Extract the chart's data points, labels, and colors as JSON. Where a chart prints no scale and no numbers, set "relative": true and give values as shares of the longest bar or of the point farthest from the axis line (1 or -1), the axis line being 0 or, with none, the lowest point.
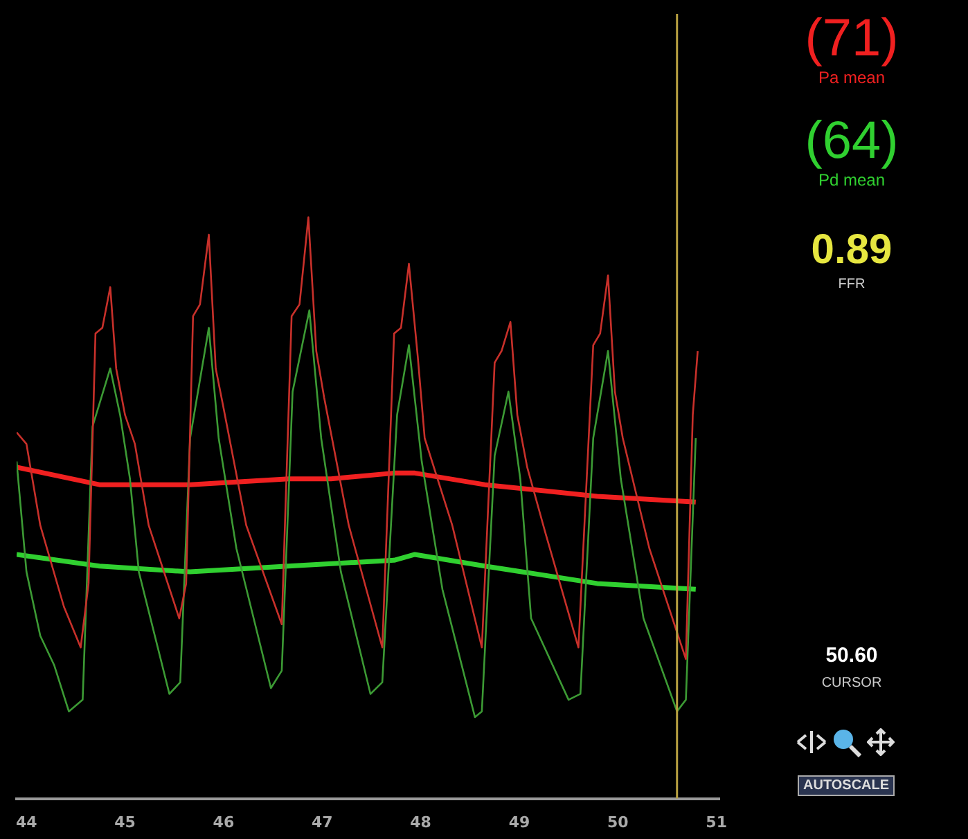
{
  "chart_data": {
    "type": "line",
    "relative": true,
    "xlim": [
      43.9,
      51.03
    ],
    "xticks": [
      44,
      45,
      46,
      47,
      48,
      49,
      50,
      51
    ],
    "marker": "none",
    "ref_lines": [
      {
        "axis": "x",
        "value": 50.6,
        "color": "#b8a040"
      }
    ],
    "annotations": [
      "(71)",
      "Pa mean",
      "(64)",
      "Pd mean",
      "0.89",
      "FFR",
      "50.60",
      "CURSOR",
      "AUTOSCALE"
    ],
    "series": [
      {
        "color": "#c8302a",
        "x": [
          43.9,
          44.0,
          44.14,
          44.38,
          44.55,
          44.63,
          44.7,
          44.77,
          44.85,
          44.91,
          45.0,
          45.1,
          45.24,
          45.55,
          45.62,
          45.69,
          45.76,
          45.85,
          45.92,
          45.99,
          46.23,
          46.59,
          46.69,
          46.77,
          46.86,
          46.94,
          47.02,
          47.27,
          47.61,
          47.73,
          47.8,
          47.88,
          47.97,
          48.04,
          48.32,
          48.62,
          48.75,
          48.82,
          48.91,
          48.98,
          49.08,
          49.26,
          49.6,
          49.75,
          49.82,
          49.9,
          49.97,
          50.05,
          50.32,
          50.69,
          50.76,
          50.81
        ],
        "values": [
          0.63,
          0.61,
          0.47,
          0.33,
          0.26,
          0.37,
          0.8,
          0.81,
          0.88,
          0.74,
          0.66,
          0.61,
          0.47,
          0.31,
          0.37,
          0.83,
          0.85,
          0.97,
          0.74,
          0.68,
          0.47,
          0.3,
          0.83,
          0.85,
          1,
          0.77,
          0.69,
          0.47,
          0.26,
          0.8,
          0.81,
          0.92,
          0.76,
          0.62,
          0.47,
          0.26,
          0.75,
          0.77,
          0.82,
          0.66,
          0.57,
          0.46,
          0.26,
          0.78,
          0.8,
          0.9,
          0.7,
          0.62,
          0.43,
          0.24,
          0.66,
          0.77
        ]
      },
      {
        "color": "#3c9a34",
        "x": [
          43.9,
          44.0,
          44.14,
          44.28,
          44.43,
          44.57,
          44.67,
          44.85,
          44.95,
          45.05,
          45.14,
          45.45,
          45.56,
          45.66,
          45.85,
          45.95,
          46.13,
          46.48,
          46.59,
          46.7,
          46.87,
          46.99,
          47.19,
          47.49,
          47.61,
          47.76,
          47.88,
          48.01,
          48.22,
          48.55,
          48.62,
          48.75,
          48.89,
          49.01,
          49.12,
          49.5,
          49.62,
          49.75,
          49.9,
          50.03,
          50.26,
          50.6,
          50.69,
          50.79
        ],
        "values": [
          0.58,
          0.39,
          0.28,
          0.23,
          0.15,
          0.17,
          0.64,
          0.74,
          0.66,
          0.55,
          0.39,
          0.18,
          0.2,
          0.62,
          0.81,
          0.62,
          0.43,
          0.19,
          0.22,
          0.7,
          0.84,
          0.62,
          0.39,
          0.18,
          0.2,
          0.66,
          0.78,
          0.58,
          0.36,
          0.14,
          0.15,
          0.59,
          0.7,
          0.55,
          0.31,
          0.17,
          0.18,
          0.62,
          0.77,
          0.55,
          0.31,
          0.15,
          0.17,
          0.62
        ]
      },
      {
        "color": "#f02020",
        "x": [
          43.9,
          44.74,
          45.66,
          46.66,
          47.09,
          47.73,
          47.94,
          48.65,
          49.79,
          50.79
        ],
        "values": [
          0.57,
          0.54,
          0.54,
          0.55,
          0.55,
          0.56,
          0.56,
          0.54,
          0.52,
          0.51
        ]
      },
      {
        "color": "#30d030",
        "x": [
          43.9,
          44.74,
          45.66,
          46.66,
          47.73,
          47.94,
          48.65,
          49.79,
          50.79
        ],
        "values": [
          0.42,
          0.4,
          0.39,
          0.4,
          0.41,
          0.42,
          0.4,
          0.37,
          0.36
        ]
      }
    ]
  }
}
